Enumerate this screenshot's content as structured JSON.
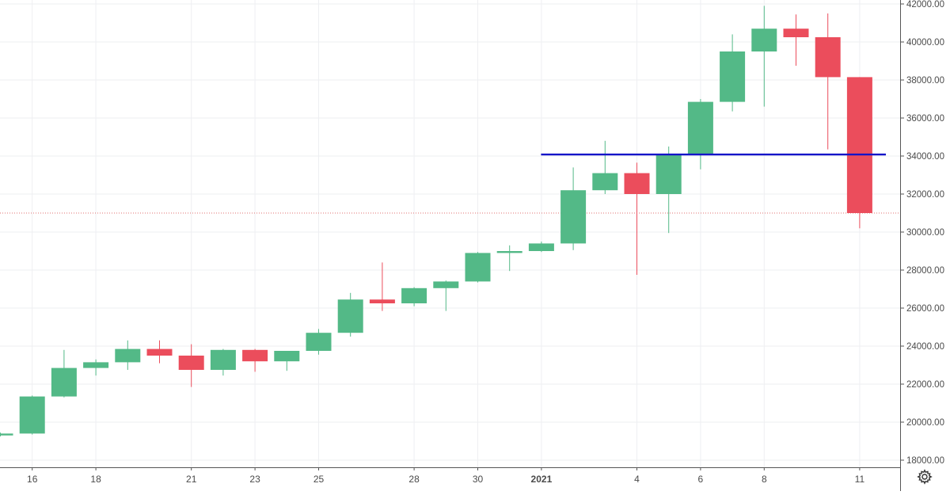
{
  "chart_data": {
    "type": "candlestick",
    "title": "",
    "ylim": [
      17700,
      42000
    ],
    "y_ticks": [
      "18000.00",
      "20000.00",
      "22000.00",
      "24000.00",
      "26000.00",
      "28000.00",
      "30000.00",
      "32000.00",
      "34000.00",
      "36000.00",
      "38000.00",
      "40000.00",
      "42000.00"
    ],
    "x_ticks": [
      {
        "label": "16",
        "index": 1
      },
      {
        "label": "18",
        "index": 3
      },
      {
        "label": "21",
        "index": 6
      },
      {
        "label": "23",
        "index": 8
      },
      {
        "label": "25",
        "index": 10
      },
      {
        "label": "28",
        "index": 13
      },
      {
        "label": "30",
        "index": 15
      },
      {
        "label": "2021",
        "index": 17,
        "bold": true
      },
      {
        "label": "4",
        "index": 20
      },
      {
        "label": "6",
        "index": 22
      },
      {
        "label": "8",
        "index": 24
      },
      {
        "label": "11",
        "index": 27
      }
    ],
    "candles": [
      {
        "open": 19300,
        "high": 19450,
        "low": 19250,
        "close": 19400
      },
      {
        "open": 19400,
        "high": 21400,
        "low": 19350,
        "close": 21350
      },
      {
        "open": 21350,
        "high": 23800,
        "low": 21300,
        "close": 22850
      },
      {
        "open": 22850,
        "high": 23300,
        "low": 22450,
        "close": 23150
      },
      {
        "open": 23150,
        "high": 24300,
        "low": 22750,
        "close": 23850
      },
      {
        "open": 23850,
        "high": 24300,
        "low": 23100,
        "close": 23500
      },
      {
        "open": 23500,
        "high": 24100,
        "low": 21850,
        "close": 22750
      },
      {
        "open": 22750,
        "high": 23850,
        "low": 22450,
        "close": 23800
      },
      {
        "open": 23800,
        "high": 23850,
        "low": 22650,
        "close": 23200
      },
      {
        "open": 23200,
        "high": 23750,
        "low": 22700,
        "close": 23750
      },
      {
        "open": 23750,
        "high": 24900,
        "low": 23550,
        "close": 24700
      },
      {
        "open": 24700,
        "high": 26800,
        "low": 24500,
        "close": 26450
      },
      {
        "open": 26450,
        "high": 28400,
        "low": 25850,
        "close": 26250
      },
      {
        "open": 26250,
        "high": 27100,
        "low": 26100,
        "close": 27050
      },
      {
        "open": 27050,
        "high": 27450,
        "low": 25850,
        "close": 27400
      },
      {
        "open": 27400,
        "high": 28950,
        "low": 27350,
        "close": 28900
      },
      {
        "open": 28900,
        "high": 29300,
        "low": 27950,
        "close": 29000
      },
      {
        "open": 29000,
        "high": 29500,
        "low": 28950,
        "close": 29400
      },
      {
        "open": 29400,
        "high": 33400,
        "low": 29050,
        "close": 32200
      },
      {
        "open": 32200,
        "high": 34800,
        "low": 32000,
        "close": 33100
      },
      {
        "open": 33100,
        "high": 33650,
        "low": 27750,
        "close": 32000
      },
      {
        "open": 32000,
        "high": 34500,
        "low": 29950,
        "close": 34050
      },
      {
        "open": 34050,
        "high": 37000,
        "low": 33300,
        "close": 36850
      },
      {
        "open": 36850,
        "high": 40400,
        "low": 36350,
        "close": 39500
      },
      {
        "open": 39500,
        "high": 41900,
        "low": 36600,
        "close": 40700
      },
      {
        "open": 40700,
        "high": 41450,
        "low": 38750,
        "close": 40250
      },
      {
        "open": 40250,
        "high": 41500,
        "low": 34350,
        "close": 38150
      },
      {
        "open": 38150,
        "high": 38150,
        "low": 30200,
        "close": 31000
      }
    ],
    "horizontal_line": {
      "value": 34080,
      "from_index": 17,
      "color": "#1414c8"
    },
    "price_line": {
      "value": 31000,
      "color": "#e07070"
    },
    "colors": {
      "up": "#53b987",
      "down": "#eb4d5c",
      "grid": "#eeeff2",
      "axis_text": "#4a4a4a",
      "axis_line": "#555555"
    },
    "settings_icon": "gear-icon"
  }
}
